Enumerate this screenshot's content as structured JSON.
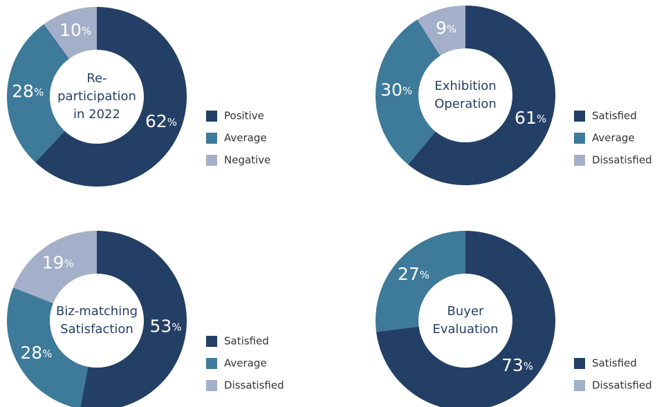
{
  "chart_data": [
    {
      "type": "donut",
      "title": [
        "Re-",
        "participation",
        "in 2022"
      ],
      "unit": "%",
      "categories": [
        "Positive",
        "Average",
        "Negative"
      ],
      "values": [
        62,
        28,
        10
      ],
      "colors": [
        "#243f66",
        "#3e7a9a",
        "#a4afc9"
      ],
      "legend_colors": [
        "#243f66",
        "#3e7a9a",
        "#a4afc9"
      ]
    },
    {
      "type": "donut",
      "title": [
        "Exhibition",
        "Operation"
      ],
      "unit": "%",
      "categories": [
        "Satisfied",
        "Average",
        "Dissatisfied"
      ],
      "values": [
        61,
        30,
        9
      ],
      "colors": [
        "#243f66",
        "#3e7a9a",
        "#a4afc9"
      ],
      "legend_colors": [
        "#243f66",
        "#3e7a9a",
        "#a4afc9"
      ]
    },
    {
      "type": "donut",
      "title": [
        "Biz-matching",
        "Satisfaction"
      ],
      "unit": "%",
      "categories": [
        "Satisfied",
        "Average",
        "Dissatisfied"
      ],
      "values": [
        53,
        28,
        19
      ],
      "colors": [
        "#243f66",
        "#3e7a9a",
        "#a4afc9"
      ],
      "legend_colors": [
        "#243f66",
        "#3e7a9a",
        "#a4afc9"
      ]
    },
    {
      "type": "donut",
      "title": [
        "Buyer",
        "Evaluation"
      ],
      "unit": "%",
      "categories": [
        "Satisfied",
        "Dissatisfied"
      ],
      "values": [
        73,
        27
      ],
      "colors": [
        "#243f66",
        "#3e7a9a"
      ],
      "legend_colors": [
        "#243f66",
        "#a4afc9"
      ]
    }
  ]
}
